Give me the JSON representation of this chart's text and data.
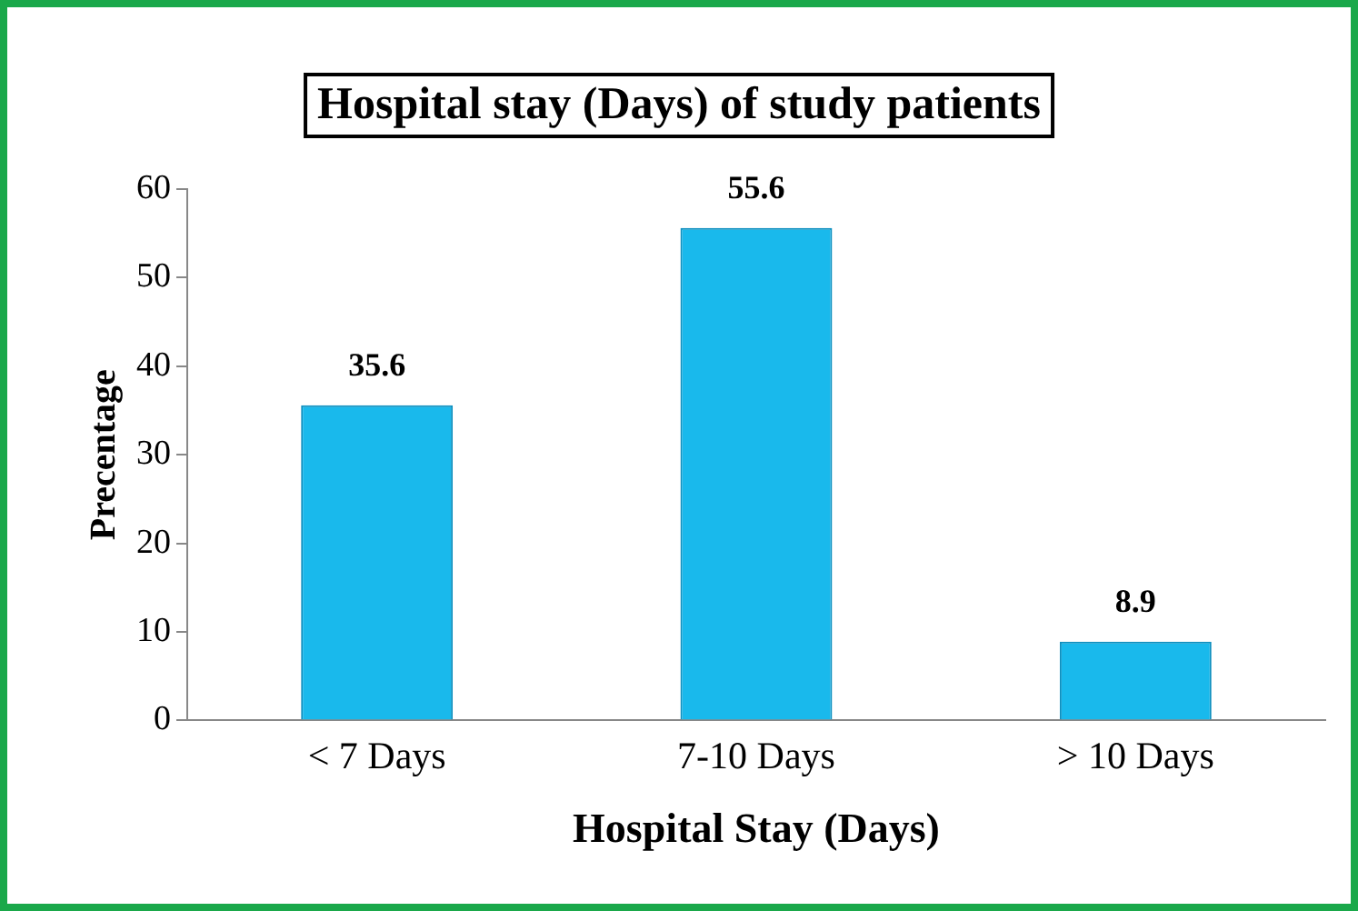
{
  "chart_data": {
    "type": "bar",
    "title": "Hospital stay (Days) of study patients",
    "xlabel": "Hospital Stay (Days)",
    "ylabel": "Precentage",
    "categories": [
      "< 7 Days",
      "7-10 Days",
      "> 10 Days"
    ],
    "values": [
      35.6,
      55.6,
      8.9
    ],
    "color": "#19b9ec",
    "ylim": [
      0,
      60
    ],
    "yticks": [
      0,
      10,
      20,
      30,
      40,
      50,
      60
    ],
    "grid": false,
    "legend": false,
    "data_labels": true
  }
}
